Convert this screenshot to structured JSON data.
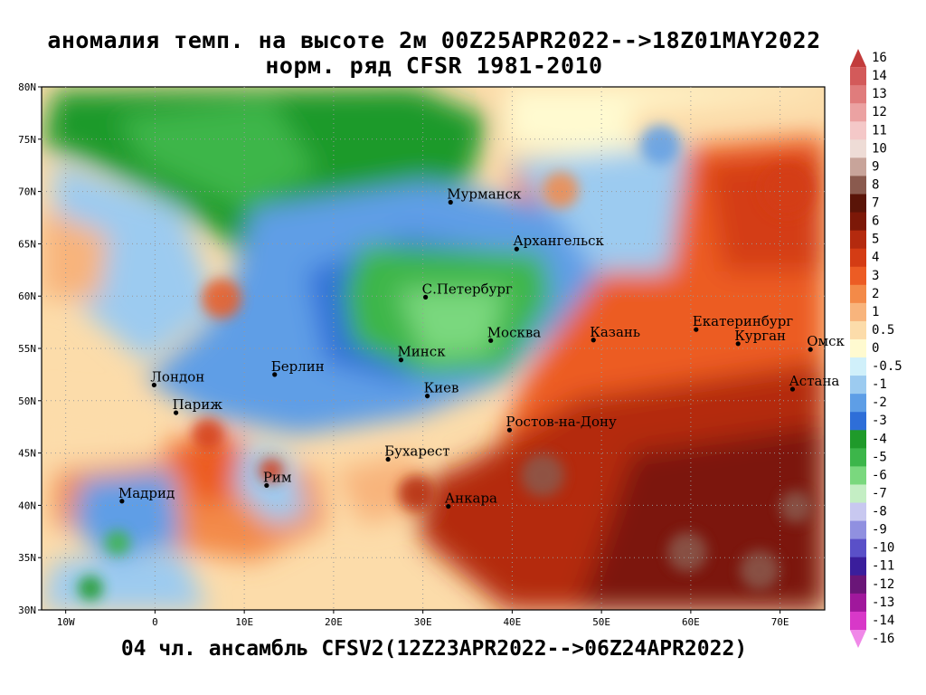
{
  "title_line1": "аномалия темп. на высоте 2м 00Z25APR2022-->18Z01MAY2022",
  "title_line2": "норм. ряд CFSR 1981-2010",
  "footer": "04 чл. ансамбль CFSV2(12Z23APR2022-->06Z24APR2022)",
  "lat_labels": [
    "80N",
    "75N",
    "70N",
    "65N",
    "60N",
    "55N",
    "50N",
    "45N",
    "40N",
    "35N",
    "30N"
  ],
  "lon_labels": [
    "10W",
    "0",
    "10E",
    "20E",
    "30E",
    "40E",
    "50E",
    "60E",
    "70E"
  ],
  "cities": [
    {
      "name": "Мурманск",
      "lon": 33.1,
      "lat": 68.97
    },
    {
      "name": "Архангельск",
      "lon": 40.5,
      "lat": 64.5
    },
    {
      "name": "С.Петербург",
      "lon": 30.3,
      "lat": 59.9
    },
    {
      "name": "Москва",
      "lon": 37.6,
      "lat": 55.75
    },
    {
      "name": "Казань",
      "lon": 49.1,
      "lat": 55.8
    },
    {
      "name": "Екатеринбург",
      "lon": 60.6,
      "lat": 56.8
    },
    {
      "name": "Курган",
      "lon": 65.3,
      "lat": 55.45
    },
    {
      "name": "Омск",
      "lon": 73.4,
      "lat": 54.9
    },
    {
      "name": "Астана",
      "lon": 71.4,
      "lat": 51.1
    },
    {
      "name": "Минск",
      "lon": 27.55,
      "lat": 53.9
    },
    {
      "name": "Берлин",
      "lon": 13.4,
      "lat": 52.5
    },
    {
      "name": "Лондон",
      "lon": -0.1,
      "lat": 51.5
    },
    {
      "name": "Париж",
      "lon": 2.35,
      "lat": 48.85
    },
    {
      "name": "Киев",
      "lon": 30.5,
      "lat": 50.45
    },
    {
      "name": "Ростов-на-Дону",
      "lon": 39.7,
      "lat": 47.2
    },
    {
      "name": "Бухарест",
      "lon": 26.1,
      "lat": 44.4
    },
    {
      "name": "Рим",
      "lon": 12.5,
      "lat": 41.9
    },
    {
      "name": "Мадрид",
      "lon": -3.7,
      "lat": 40.4
    },
    {
      "name": "Анкара",
      "lon": 32.85,
      "lat": 39.9
    }
  ],
  "colorbar": [
    {
      "label": "16",
      "color": "#c23b3b"
    },
    {
      "label": "14",
      "color": "#d35a5a"
    },
    {
      "label": "13",
      "color": "#e07c7c"
    },
    {
      "label": "12",
      "color": "#eba2a2"
    },
    {
      "label": "11",
      "color": "#f4c8c8"
    },
    {
      "label": "10",
      "color": "#eedcd6"
    },
    {
      "label": "9",
      "color": "#c8a49a"
    },
    {
      "label": "8",
      "color": "#8a5a4e"
    },
    {
      "label": "7",
      "color": "#5a1408"
    },
    {
      "label": "6",
      "color": "#7c1808"
    },
    {
      "label": "5",
      "color": "#b42a0e"
    },
    {
      "label": "4",
      "color": "#d43c14"
    },
    {
      "label": "3",
      "color": "#ec5c24"
    },
    {
      "label": "2",
      "color": "#f38a48"
    },
    {
      "label": "1",
      "color": "#f8b47c"
    },
    {
      "label": "0.5",
      "color": "#fcdcaa"
    },
    {
      "label": "0",
      "color": "#fffad0"
    },
    {
      "label": "-0.5",
      "color": "#d0f0fa"
    },
    {
      "label": "-1",
      "color": "#9ccbf0"
    },
    {
      "label": "-2",
      "color": "#5e9ee6"
    },
    {
      "label": "-3",
      "color": "#2e6ed8"
    },
    {
      "label": "-4",
      "color": "#1f9a2a"
    },
    {
      "label": "-5",
      "color": "#3cb64a"
    },
    {
      "label": "-6",
      "color": "#7ad87e"
    },
    {
      "label": "-7",
      "color": "#c4eec4"
    },
    {
      "label": "-8",
      "color": "#c8c8f0"
    },
    {
      "label": "-9",
      "color": "#9090e0"
    },
    {
      "label": "-10",
      "color": "#5a50c8"
    },
    {
      "label": "-11",
      "color": "#3a1e9c"
    },
    {
      "label": "-12",
      "color": "#6a1678"
    },
    {
      "label": "-13",
      "color": "#a0189c"
    },
    {
      "label": "-14",
      "color": "#d838c8"
    },
    {
      "label": "-16",
      "color": "#f088e8"
    }
  ]
}
